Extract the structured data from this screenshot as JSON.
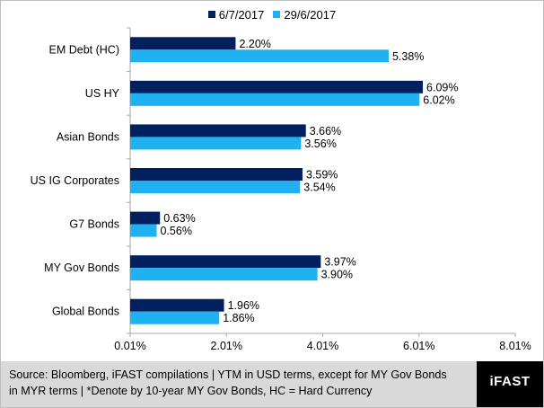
{
  "chart_data": {
    "type": "bar",
    "orientation": "horizontal",
    "title": "",
    "categories": [
      "EM Debt (HC)",
      "US HY",
      "Asian Bonds",
      "US IG Corporates",
      "G7 Bonds",
      "MY Gov Bonds",
      "Global Bonds"
    ],
    "series": [
      {
        "name": "6/7/2017",
        "color": "#002060",
        "values": [
          2.2,
          6.09,
          3.66,
          3.59,
          0.63,
          3.97,
          1.96
        ],
        "labels": [
          "2.20%",
          "6.09%",
          "3.66%",
          "3.59%",
          "0.63%",
          "3.97%",
          "1.96%"
        ]
      },
      {
        "name": "29/6/2017",
        "color": "#1fb1f0",
        "values": [
          5.38,
          6.02,
          3.56,
          3.54,
          0.56,
          3.9,
          1.86
        ],
        "labels": [
          "5.38%",
          "6.02%",
          "3.56%",
          "3.54%",
          "0.56%",
          "3.90%",
          "1.86%"
        ]
      }
    ],
    "xlim": [
      0.01,
      8.01
    ],
    "xticks": [
      0.01,
      2.01,
      4.01,
      6.01,
      8.01
    ],
    "xtick_labels": [
      "0.01%",
      "2.01%",
      "4.01%",
      "6.01%",
      "8.01%"
    ],
    "legend_position": "top-center",
    "grid": false
  },
  "footer": {
    "source_line1": "Source: Bloomberg, iFAST compilations | YTM in USD terms, except for MY Gov Bonds",
    "source_line2": "in MYR terms |  *Denote by 10-year MY Gov Bonds, HC = Hard Currency",
    "logo_text": "iFAST"
  }
}
